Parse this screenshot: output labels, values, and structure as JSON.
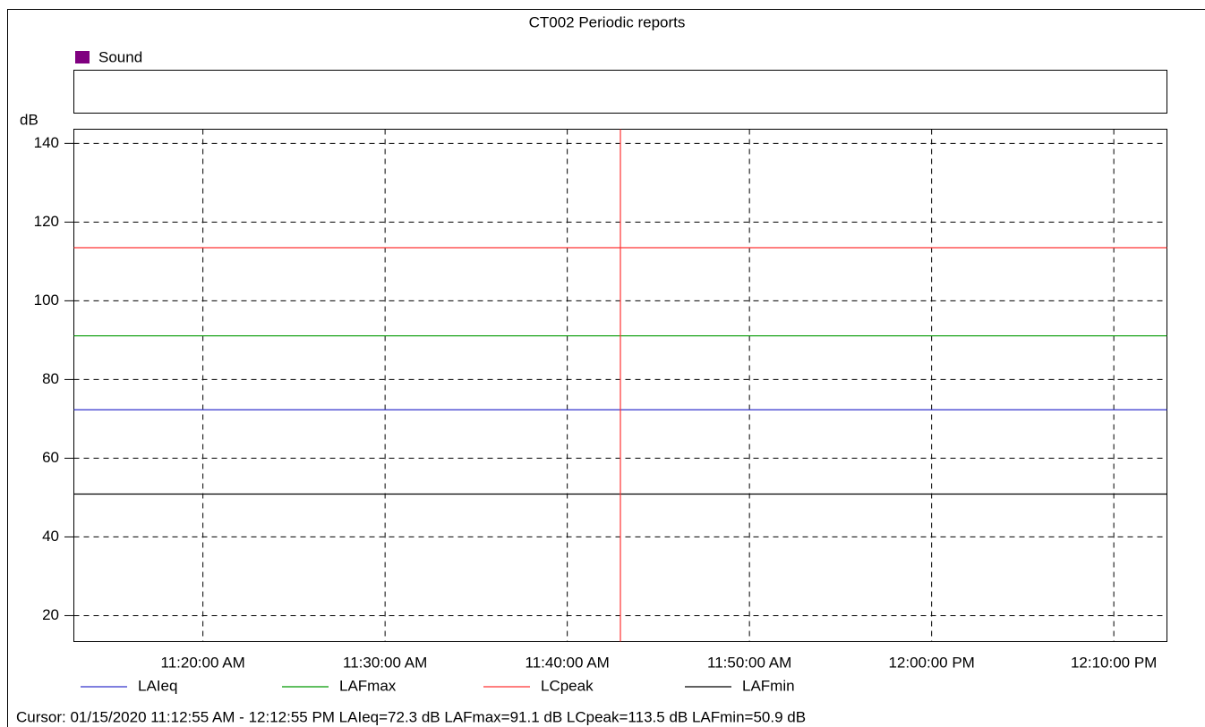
{
  "chart_data": {
    "type": "line",
    "title": "CT002 Periodic reports",
    "panel_legend": {
      "name": "Sound",
      "color": "#800080"
    },
    "y_label": "dB",
    "ylim": [
      13.4,
      143.6
    ],
    "yticks": [
      20,
      40,
      60,
      80,
      100,
      120,
      140
    ],
    "xlim": [
      672.9167,
      732.9167
    ],
    "xticks": [
      {
        "value": 680,
        "label": "11:20:00 AM"
      },
      {
        "value": 690,
        "label": "11:30:00 AM"
      },
      {
        "value": 700,
        "label": "11:40:00 AM"
      },
      {
        "value": 710,
        "label": "11:50:00 AM"
      },
      {
        "value": 720,
        "label": "12:00:00 PM"
      },
      {
        "value": 730,
        "label": "12:10:00 PM"
      }
    ],
    "grid": true,
    "cursor_x": 702.9167,
    "cursor_color": "#ff3333",
    "series": [
      {
        "name": "LAIeq",
        "color": "#3333cc",
        "x": [
          672.9167,
          732.9167
        ],
        "values": [
          72.3,
          72.3
        ]
      },
      {
        "name": "LAFmax",
        "color": "#009900",
        "x": [
          672.9167,
          732.9167
        ],
        "values": [
          91.1,
          91.1
        ]
      },
      {
        "name": "LCpeak",
        "color": "#ff3333",
        "x": [
          672.9167,
          732.9167
        ],
        "values": [
          113.5,
          113.5
        ]
      },
      {
        "name": "LAFmin",
        "color": "#000000",
        "x": [
          672.9167,
          732.9167
        ],
        "values": [
          50.9,
          50.9
        ]
      }
    ],
    "status_text": "Cursor: 01/15/2020 11:12:55 AM - 12:12:55 PM  LAIeq=72.3 dB  LAFmax=91.1 dB  LCpeak=113.5 dB  LAFmin=50.9 dB"
  }
}
